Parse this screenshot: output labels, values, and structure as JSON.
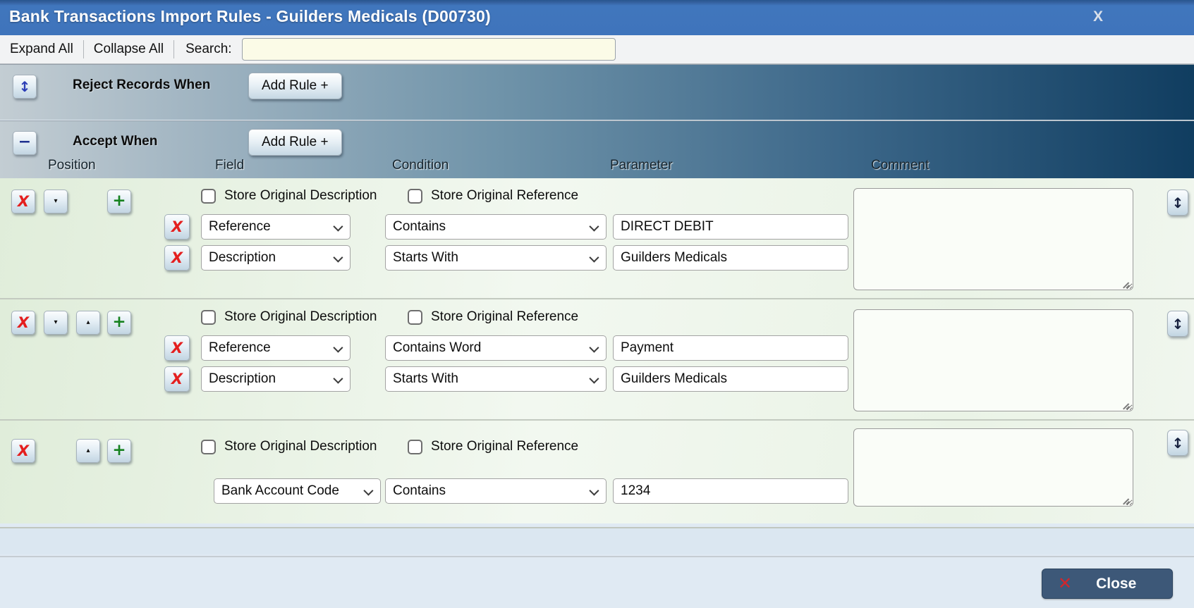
{
  "window": {
    "title": "Bank Transactions Import Rules - Guilders Medicals (D00730)"
  },
  "toolbar": {
    "expand_all": "Expand All",
    "collapse_all": "Collapse All",
    "search_label": "Search:",
    "search_value": ""
  },
  "sections": {
    "reject": {
      "title": "Reject Records When",
      "add_rule_label": "Add Rule +",
      "collapsed": true
    },
    "accept": {
      "title": "Accept When",
      "add_rule_label": "Add Rule +",
      "collapsed": false
    }
  },
  "columns": {
    "position": "Position",
    "field": "Field",
    "condition": "Condition",
    "parameter": "Parameter",
    "comment": "Comment"
  },
  "checkbox_labels": {
    "store_original_description": "Store Original Description",
    "store_original_reference": "Store Original Reference"
  },
  "rules": [
    {
      "store_original_description": false,
      "store_original_reference": false,
      "comment": "",
      "conditions": [
        {
          "field": "Reference",
          "condition": "Contains",
          "parameter": "DIRECT DEBIT"
        },
        {
          "field": "Description",
          "condition": "Starts With",
          "parameter": "Guilders Medicals"
        }
      ]
    },
    {
      "store_original_description": false,
      "store_original_reference": false,
      "comment": "",
      "conditions": [
        {
          "field": "Reference",
          "condition": "Contains Word",
          "parameter": "Payment"
        },
        {
          "field": "Description",
          "condition": "Starts With",
          "parameter": "Guilders Medicals"
        }
      ]
    },
    {
      "store_original_description": false,
      "store_original_reference": false,
      "comment": "",
      "conditions": [
        {
          "field": "Bank Account Code",
          "condition": "Contains",
          "parameter": "1234"
        }
      ]
    }
  ],
  "icons": {
    "window_close": "X",
    "delete": "X",
    "move_down": "▾",
    "move_up": "▴",
    "add": "+",
    "expand_updown": "↕",
    "collapse_minus": "−",
    "row_updown": "↕",
    "close_x": "✕"
  },
  "footer": {
    "close_label": "Close"
  },
  "colors": {
    "titlebar_blue": "#3f74bb",
    "band_dark_navy": "#103d60",
    "band_light": "#c3cdd3",
    "row_green": "#eaf3e6",
    "footer_blue": "#e0eaf3",
    "close_button_navy": "#3d5878",
    "delete_red": "#e41f1f",
    "add_green": "#178220",
    "search_yellow": "#fbfbe7"
  }
}
